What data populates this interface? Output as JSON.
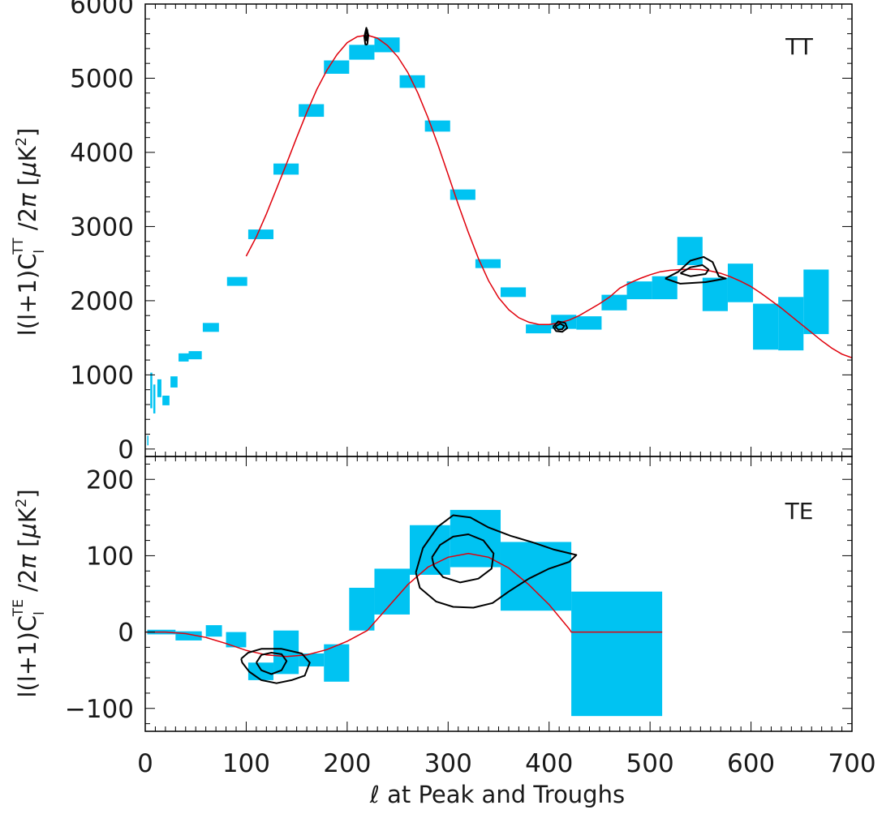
{
  "chart_data": [
    {
      "type": "scatter",
      "panel_label": "TT",
      "ylabel": "l(l+1)Cₗᵀᵀ/2π [μK²]",
      "ylabel_parts": {
        "pre": "l(l+1)C",
        "sub": "l",
        "sup": "TT",
        "mid": " /2",
        "pi": "π",
        "unit_open": "  [",
        "mu": "μ",
        "unit_k": "K",
        "unit_pow": "2",
        "unit_close": "]"
      },
      "xlim": [
        0,
        700
      ],
      "ylim": [
        -100,
        6000
      ],
      "yticks": [
        0,
        1000,
        2000,
        3000,
        4000,
        5000,
        6000
      ],
      "ytick_labels": [
        "0",
        "1000",
        "2000",
        "3000",
        "4000",
        "5000",
        "6000"
      ],
      "data_color": "#00c3f2",
      "model_color": "#e0000b",
      "contour_color": "#000000",
      "series": [
        {
          "kind": "bandpowers",
          "boxes": [
            {
              "x0": 2,
              "x1": 3,
              "y0": 50,
              "y1": 180
            },
            {
              "x0": 5,
              "x1": 7,
              "y0": 550,
              "y1": 1030
            },
            {
              "x0": 8,
              "x1": 10,
              "y0": 480,
              "y1": 870
            },
            {
              "x0": 12,
              "x1": 16,
              "y0": 700,
              "y1": 940
            },
            {
              "x0": 17,
              "x1": 24,
              "y0": 590,
              "y1": 720
            },
            {
              "x0": 25,
              "x1": 32,
              "y0": 830,
              "y1": 980
            },
            {
              "x0": 33,
              "x1": 43,
              "y0": 1180,
              "y1": 1290
            },
            {
              "x0": 43,
              "x1": 56,
              "y0": 1210,
              "y1": 1320
            },
            {
              "x0": 57,
              "x1": 73,
              "y0": 1580,
              "y1": 1700
            },
            {
              "x0": 81,
              "x1": 101,
              "y0": 2200,
              "y1": 2320
            },
            {
              "x0": 102,
              "x1": 127,
              "y0": 2830,
              "y1": 2960
            },
            {
              "x0": 127,
              "x1": 152,
              "y0": 3700,
              "y1": 3850
            },
            {
              "x0": 152,
              "x1": 177,
              "y0": 4480,
              "y1": 4650
            },
            {
              "x0": 177,
              "x1": 202,
              "y0": 5060,
              "y1": 5240
            },
            {
              "x0": 202,
              "x1": 227,
              "y0": 5250,
              "y1": 5450
            },
            {
              "x0": 227,
              "x1": 252,
              "y0": 5350,
              "y1": 5550
            },
            {
              "x0": 252,
              "x1": 277,
              "y0": 4870,
              "y1": 5040
            },
            {
              "x0": 277,
              "x1": 302,
              "y0": 4280,
              "y1": 4430
            },
            {
              "x0": 302,
              "x1": 327,
              "y0": 3360,
              "y1": 3500
            },
            {
              "x0": 327,
              "x1": 352,
              "y0": 2440,
              "y1": 2560
            },
            {
              "x0": 352,
              "x1": 377,
              "y0": 2050,
              "y1": 2180
            },
            {
              "x0": 377,
              "x1": 402,
              "y0": 1560,
              "y1": 1680
            },
            {
              "x0": 402,
              "x1": 427,
              "y0": 1620,
              "y1": 1810
            },
            {
              "x0": 427,
              "x1": 452,
              "y0": 1610,
              "y1": 1790
            },
            {
              "x0": 452,
              "x1": 477,
              "y0": 1870,
              "y1": 2080
            },
            {
              "x0": 477,
              "x1": 502,
              "y0": 2020,
              "y1": 2260
            },
            {
              "x0": 502,
              "x1": 527,
              "y0": 2020,
              "y1": 2330
            },
            {
              "x0": 527,
              "x1": 552,
              "y0": 2480,
              "y1": 2860
            },
            {
              "x0": 552,
              "x1": 577,
              "y0": 1860,
              "y1": 2310
            },
            {
              "x0": 577,
              "x1": 602,
              "y0": 1980,
              "y1": 2500
            },
            {
              "x0": 602,
              "x1": 627,
              "y0": 1340,
              "y1": 1960
            },
            {
              "x0": 627,
              "x1": 652,
              "y0": 1330,
              "y1": 2050
            },
            {
              "x0": 652,
              "x1": 677,
              "y0": 1550,
              "y1": 2420
            }
          ]
        },
        {
          "kind": "model",
          "x": [
            100,
            110,
            120,
            130,
            140,
            150,
            160,
            170,
            180,
            190,
            200,
            210,
            220,
            230,
            240,
            250,
            260,
            270,
            280,
            290,
            300,
            310,
            320,
            330,
            340,
            350,
            360,
            370,
            380,
            390,
            400,
            410,
            420,
            430,
            440,
            450,
            460,
            470,
            480,
            490,
            500,
            510,
            520,
            530,
            540,
            550,
            560,
            570,
            580,
            590,
            600,
            610,
            620,
            630,
            640,
            650,
            660,
            670,
            680,
            690,
            700
          ],
          "y": [
            2600,
            2860,
            3170,
            3510,
            3850,
            4200,
            4540,
            4850,
            5110,
            5320,
            5480,
            5560,
            5580,
            5540,
            5440,
            5290,
            5080,
            4800,
            4470,
            4100,
            3700,
            3300,
            2920,
            2570,
            2270,
            2040,
            1880,
            1770,
            1710,
            1680,
            1680,
            1700,
            1740,
            1800,
            1880,
            1960,
            2050,
            2170,
            2240,
            2300,
            2350,
            2390,
            2410,
            2420,
            2425,
            2420,
            2400,
            2370,
            2320,
            2260,
            2190,
            2100,
            2000,
            1900,
            1790,
            1680,
            1570,
            1460,
            1360,
            1280,
            1230
          ]
        },
        {
          "kind": "contours",
          "paths": [
            [
              [
                218,
                5450
              ],
              [
                217,
                5560
              ],
              [
                219,
                5680
              ],
              [
                221,
                5580
              ],
              [
                220,
                5460
              ],
              [
                218,
                5450
              ]
            ],
            [
              [
                219,
                5500
              ],
              [
                218,
                5590
              ],
              [
                220,
                5650
              ],
              [
                220,
                5520
              ],
              [
                219,
                5500
              ]
            ],
            [
              [
                404,
                1650
              ],
              [
                407,
                1590
              ],
              [
                413,
                1580
              ],
              [
                418,
                1630
              ],
              [
                416,
                1700
              ],
              [
                409,
                1720
              ],
              [
                404,
                1650
              ]
            ],
            [
              [
                406,
                1650
              ],
              [
                409,
                1610
              ],
              [
                413,
                1615
              ],
              [
                415,
                1660
              ],
              [
                411,
                1690
              ],
              [
                406,
                1650
              ]
            ],
            [
              [
                515,
                2300
              ],
              [
                528,
                2390
              ],
              [
                540,
                2540
              ],
              [
                553,
                2590
              ],
              [
                562,
                2520
              ],
              [
                568,
                2330
              ],
              [
                575,
                2300
              ],
              [
                555,
                2250
              ],
              [
                530,
                2230
              ],
              [
                515,
                2300
              ]
            ],
            [
              [
                530,
                2370
              ],
              [
                540,
                2450
              ],
              [
                552,
                2480
              ],
              [
                558,
                2420
              ],
              [
                555,
                2360
              ],
              [
                540,
                2330
              ],
              [
                530,
                2370
              ]
            ]
          ]
        }
      ]
    },
    {
      "type": "scatter",
      "panel_label": "TE",
      "ylabel": "l(l+1)Cₗᵀᴱ/2π [μK²]",
      "ylabel_parts": {
        "pre": "l(l+1)C",
        "sub": "l",
        "sup": "TE",
        "mid": " /2",
        "pi": "π",
        "unit_open": "  [",
        "mu": "μ",
        "unit_k": "K",
        "unit_pow": "2",
        "unit_close": "]"
      },
      "xlabel": "l at Peak and Troughs",
      "xlabel_parts": {
        "ell": "ℓ",
        "rest": " at Peak and Troughs"
      },
      "xlim": [
        0,
        700
      ],
      "ylim": [
        -130,
        230
      ],
      "xticks": [
        0,
        100,
        200,
        300,
        400,
        500,
        600,
        700
      ],
      "xtick_labels": [
        "0",
        "100",
        "200",
        "300",
        "400",
        "500",
        "600",
        "700"
      ],
      "yticks": [
        -100,
        0,
        100,
        200
      ],
      "ytick_labels": [
        "−100",
        "0",
        "100",
        "200"
      ],
      "data_color": "#00c3f2",
      "model_color": "#e0000b",
      "contour_color": "#000000",
      "series": [
        {
          "kind": "bandpowers",
          "boxes": [
            {
              "x0": 2,
              "x1": 30,
              "y0": -3,
              "y1": 3
            },
            {
              "x0": 30,
              "x1": 56,
              "y0": -11,
              "y1": 1
            },
            {
              "x0": 60,
              "x1": 76,
              "y0": -6,
              "y1": 9
            },
            {
              "x0": 80,
              "x1": 100,
              "y0": -20,
              "y1": 0
            },
            {
              "x0": 102,
              "x1": 127,
              "y0": -63,
              "y1": -40
            },
            {
              "x0": 127,
              "x1": 152,
              "y0": -55,
              "y1": 2
            },
            {
              "x0": 152,
              "x1": 177,
              "y0": -45,
              "y1": -28
            },
            {
              "x0": 177,
              "x1": 202,
              "y0": -65,
              "y1": -16
            },
            {
              "x0": 202,
              "x1": 227,
              "y0": 2,
              "y1": 58
            },
            {
              "x0": 227,
              "x1": 262,
              "y0": 23,
              "y1": 83
            },
            {
              "x0": 262,
              "x1": 302,
              "y0": 75,
              "y1": 140
            },
            {
              "x0": 302,
              "x1": 352,
              "y0": 85,
              "y1": 160
            },
            {
              "x0": 352,
              "x1": 422,
              "y0": 28,
              "y1": 118
            },
            {
              "x0": 422,
              "x1": 512,
              "y0": -110,
              "y1": 53
            }
          ]
        },
        {
          "kind": "model",
          "x": [
            0,
            20,
            40,
            60,
            80,
            100,
            120,
            140,
            160,
            180,
            200,
            210,
            220,
            240,
            260,
            280,
            300,
            320,
            340,
            360,
            380,
            400,
            420,
            422,
            440,
            460,
            480,
            500,
            512
          ],
          "y": [
            0,
            0,
            -2,
            -7,
            -15,
            -24,
            -30,
            -32,
            -30,
            -23,
            -12,
            -5,
            2,
            32,
            62,
            85,
            98,
            103,
            98,
            84,
            62,
            36,
            4,
            0,
            0,
            0,
            0,
            0,
            0
          ]
        },
        {
          "kind": "contours",
          "paths": [
            [
              [
                95,
                -35
              ],
              [
                102,
                -27
              ],
              [
                115,
                -22
              ],
              [
                135,
                -22
              ],
              [
                155,
                -28
              ],
              [
                163,
                -40
              ],
              [
                158,
                -57
              ],
              [
                145,
                -63
              ],
              [
                130,
                -67
              ],
              [
                115,
                -63
              ],
              [
                103,
                -52
              ],
              [
                96,
                -40
              ],
              [
                95,
                -35
              ]
            ],
            [
              [
                110,
                -40
              ],
              [
                115,
                -30
              ],
              [
                125,
                -27
              ],
              [
                135,
                -29
              ],
              [
                140,
                -38
              ],
              [
                135,
                -50
              ],
              [
                125,
                -55
              ],
              [
                115,
                -50
              ],
              [
                110,
                -40
              ]
            ],
            [
              [
                268,
                78
              ],
              [
                275,
                110
              ],
              [
                290,
                138
              ],
              [
                305,
                153
              ],
              [
                322,
                150
              ],
              [
                340,
                137
              ],
              [
                362,
                126
              ],
              [
                385,
                117
              ],
              [
                405,
                108
              ],
              [
                427,
                101
              ],
              [
                420,
                92
              ],
              [
                400,
                83
              ],
              [
                380,
                70
              ],
              [
                360,
                53
              ],
              [
                344,
                38
              ],
              [
                325,
                32
              ],
              [
                305,
                33
              ],
              [
                288,
                40
              ],
              [
                272,
                58
              ],
              [
                268,
                78
              ]
            ],
            [
              [
                284,
                98
              ],
              [
                292,
                114
              ],
              [
                305,
                125
              ],
              [
                320,
                128
              ],
              [
                335,
                120
              ],
              [
                345,
                103
              ],
              [
                343,
                83
              ],
              [
                330,
                70
              ],
              [
                312,
                65
              ],
              [
                295,
                72
              ],
              [
                286,
                86
              ],
              [
                284,
                98
              ]
            ]
          ]
        }
      ]
    }
  ]
}
